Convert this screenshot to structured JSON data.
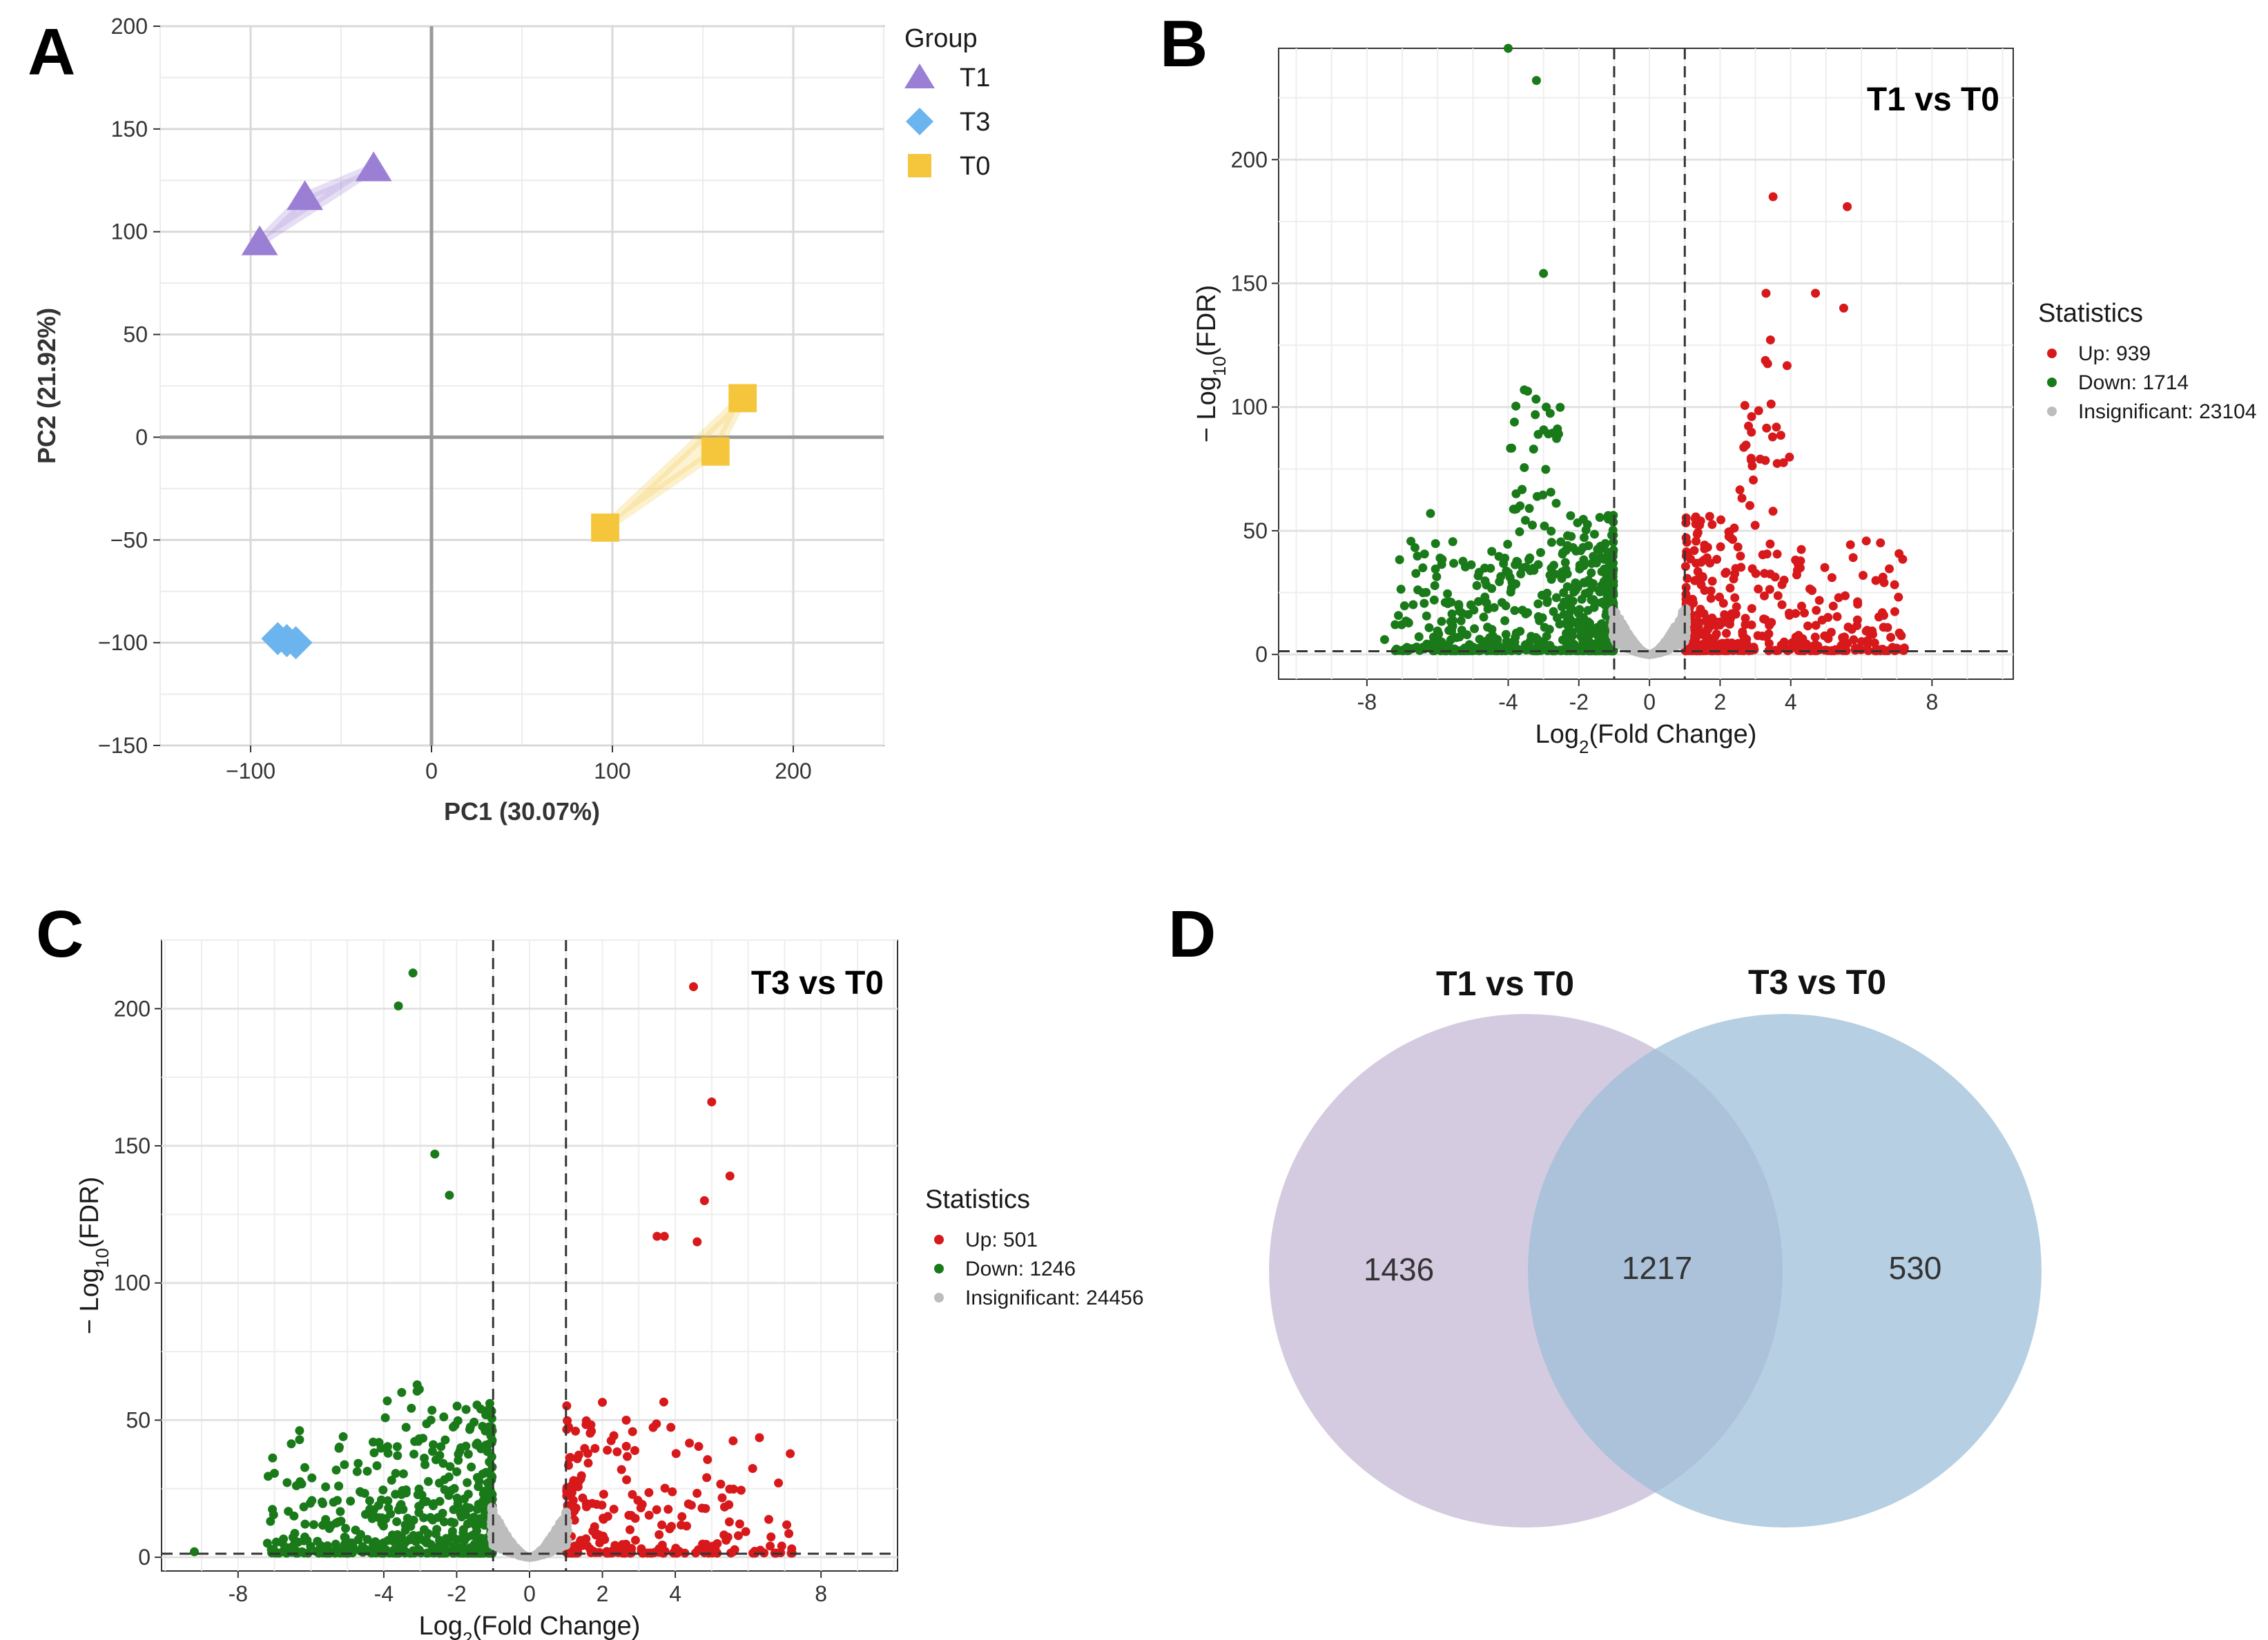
{
  "panel_labels": {
    "a": "A",
    "b": "B",
    "c": "C",
    "d": "D"
  },
  "chart_data": [
    {
      "id": "A",
      "type": "scatter",
      "xlabel": "PC1 (30.07%)",
      "ylabel": "PC2 (21.92%)",
      "xlim": [
        -150,
        250
      ],
      "ylim": [
        -150,
        200
      ],
      "xticks": [
        -100,
        0,
        100,
        200
      ],
      "yticks": [
        -150,
        -100,
        -50,
        0,
        50,
        100,
        150,
        200
      ],
      "xtick_labels": [
        "−100",
        "0",
        "100",
        "200"
      ],
      "ytick_labels": [
        "−150",
        "−100",
        "−50",
        "0",
        "50",
        "100",
        "150",
        "200"
      ],
      "legend_title": "Group",
      "legend_position": "right",
      "series": [
        {
          "name": "T1",
          "marker": "triangle",
          "color": "#9B7FD4",
          "points": [
            [
              -95,
              95
            ],
            [
              -70,
              117
            ],
            [
              -32,
              131
            ]
          ]
        },
        {
          "name": "T3",
          "marker": "diamond",
          "color": "#6CB4EE",
          "points": [
            [
              -85,
              -98
            ],
            [
              -75,
              -100
            ],
            [
              -80,
              -99
            ]
          ]
        },
        {
          "name": "T0",
          "marker": "square",
          "color": "#F5C63C",
          "points": [
            [
              96,
              -44
            ],
            [
              157,
              -7
            ],
            [
              172,
              19
            ]
          ]
        }
      ]
    },
    {
      "id": "B",
      "type": "scatter",
      "title": "T1 vs T0",
      "xlabel_main": "Log",
      "xlabel_sub": "2",
      "xlabel_rest": "(Fold Change)",
      "ylabel_main": "− Log",
      "ylabel_sub": "10",
      "ylabel_rest": "(FDR)",
      "xlim": [
        -10.5,
        10.3
      ],
      "ylim": [
        -10,
        245
      ],
      "xticks": [
        -8,
        -4,
        -2,
        0,
        2,
        4,
        8
      ],
      "xtick_labels": [
        "-8",
        "-4",
        "-2",
        "0",
        "2",
        "4",
        "8"
      ],
      "yticks": [
        0,
        50,
        100,
        150,
        200
      ],
      "ytick_labels": [
        "0",
        "50",
        "100",
        "150",
        "200"
      ],
      "vlines": [
        -1,
        1
      ],
      "hline": 1.3,
      "legend_title": "Statistics",
      "legend_position": "right",
      "series": [
        {
          "name": "Up: 939",
          "color": "#D7191C",
          "seed": 11,
          "count": 480,
          "side": "up",
          "ymax": 185
        },
        {
          "name": "Down: 1714",
          "color": "#1A7A1A",
          "seed": 23,
          "count": 780,
          "side": "down",
          "ymax": 155
        },
        {
          "name": "Insignificant: 23104",
          "color": "#BDBDBD",
          "seed": 37,
          "count": 900,
          "side": "ns",
          "ymax": 20
        }
      ],
      "highlight_points": [
        [
          -4.0,
          245
        ],
        [
          -3.2,
          232
        ],
        [
          -3.0,
          154
        ],
        [
          3.5,
          185
        ],
        [
          5.6,
          181
        ],
        [
          4.7,
          146
        ],
        [
          3.3,
          146
        ],
        [
          5.5,
          140
        ],
        [
          -7.5,
          6
        ],
        [
          -6.2,
          57
        ]
      ]
    },
    {
      "id": "C",
      "type": "scatter",
      "title": "T3 vs T0",
      "xlabel_main": "Log",
      "xlabel_sub": "2",
      "xlabel_rest": "(Fold Change)",
      "ylabel_main": "− Log",
      "ylabel_sub": "10",
      "ylabel_rest": "(FDR)",
      "xlim": [
        -10.1,
        10.1
      ],
      "ylim": [
        -5,
        225
      ],
      "xticks": [
        -8,
        -4,
        -2,
        0,
        2,
        4,
        8
      ],
      "xtick_labels": [
        "-8",
        "-4",
        "-2",
        "0",
        "2",
        "4",
        "8"
      ],
      "yticks": [
        0,
        50,
        100,
        150,
        200
      ],
      "ytick_labels": [
        "0",
        "50",
        "100",
        "150",
        "200"
      ],
      "vlines": [
        -1,
        1
      ],
      "hline": 1.3,
      "legend_title": "Statistics",
      "legend_position": "right",
      "series": [
        {
          "name": "Up: 501",
          "color": "#D7191C",
          "seed": 53,
          "count": 300,
          "side": "up",
          "ymax": 85
        },
        {
          "name": "Down: 1246",
          "color": "#1A7A1A",
          "seed": 71,
          "count": 620,
          "side": "down",
          "ymax": 92
        },
        {
          "name": "Insignificant: 24456",
          "color": "#BDBDBD",
          "seed": 89,
          "count": 900,
          "side": "ns",
          "ymax": 18
        }
      ],
      "highlight_points": [
        [
          -3.2,
          213
        ],
        [
          -3.6,
          201
        ],
        [
          -2.6,
          147
        ],
        [
          -2.2,
          132
        ],
        [
          4.5,
          208
        ],
        [
          5.0,
          166
        ],
        [
          5.5,
          139
        ],
        [
          4.8,
          130
        ],
        [
          3.5,
          117
        ],
        [
          3.7,
          117
        ],
        [
          4.6,
          115
        ],
        [
          -9.2,
          2
        ]
      ]
    }
  ],
  "venn": {
    "sets": [
      {
        "label": "T1 vs T0",
        "color": "#C9BED8"
      },
      {
        "label": "T3 vs T0",
        "color": "#9EBFD8"
      }
    ],
    "only_a": "1436",
    "both": "1217",
    "only_b": "530"
  }
}
